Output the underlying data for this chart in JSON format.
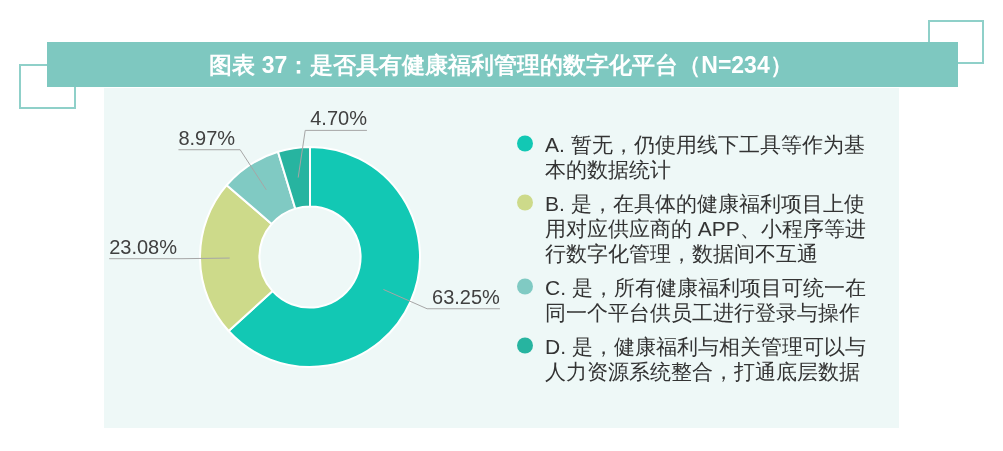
{
  "chart_data": {
    "type": "donut",
    "title": "图表 37：是否具有健康福利管理的数字化平台（N=234）",
    "categories": [
      "A. 暂无，仍使用线下工具等作为基本的数据统计",
      "B. 是，在具体的健康福利项目上使用对应供应商的 APP、小程序等进行数字化管理，数据间不互通",
      "C. 是，所有健康福利项目可统一在同一个平台供员工进行登录与操作",
      "D. 是，健康福利与相关管理可以与人力资源系统整合，打通底层数据"
    ],
    "values": [
      63.25,
      23.08,
      8.97,
      4.7
    ],
    "colors": [
      "#12c8b4",
      "#cdda8a",
      "#80cac3",
      "#27b4a0"
    ],
    "value_labels": [
      "63.25%",
      "23.08%",
      "8.97%",
      "4.70%"
    ],
    "legend": "right"
  }
}
